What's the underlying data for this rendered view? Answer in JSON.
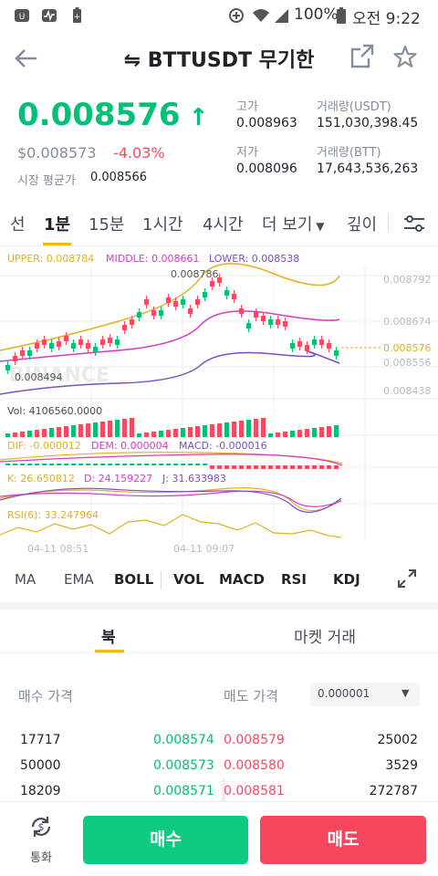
{
  "status": {
    "battery": "100%",
    "time": "오전 9:22"
  },
  "header": {
    "title": "BTTUSDT 무기한"
  },
  "price": {
    "last": "0.008576",
    "usd": "$0.008573",
    "change": "-4.03%",
    "mark_label": "시장 평균가",
    "mark_value": "0.008566",
    "high_label": "고가",
    "high": "0.008963",
    "low_label": "저가",
    "low": "0.008096",
    "vol_usdt_label": "거래량(USDT)",
    "vol_usdt": "151,030,398.45",
    "vol_btt_label": "거래량(BTT)",
    "vol_btt": "17,643,536,263"
  },
  "tabs": [
    "선",
    "1분",
    "15분",
    "1시간",
    "4시간",
    "더 보기",
    "깊이"
  ],
  "chart": {
    "boll": {
      "upper": "UPPER: 0.008784",
      "middle": "MIDDLE: 0.008661",
      "lower": "LOWER: 0.008538"
    },
    "high_mark": "0.008786",
    "low_mark": "0.008494",
    "current": "0.008576",
    "y_axis": [
      "0.008792",
      "0.008674",
      "0.008556",
      "0.008438"
    ],
    "watermark": "BINANCE",
    "vol": "Vol: 4106560.0000",
    "macd": {
      "dif": "DIF: -0.000012",
      "dem": "DEM: 0.000004",
      "macd": "MACD: -0.000016"
    },
    "kdj": {
      "k": "K: 26.650812",
      "d": "D: 24.159227",
      "j": "J: 31.633983"
    },
    "rsi": "RSI(6): 33.247964",
    "times": [
      "04-11 08:51",
      "04-11 09:07"
    ],
    "colors": {
      "up": "#02c076",
      "down": "#f84960",
      "upper": "#e2b11b",
      "middle": "#d63ac9",
      "lower": "#7b4fc2"
    }
  },
  "indicators": [
    "MA",
    "EMA",
    "BOLL",
    "VOL",
    "MACD",
    "RSI",
    "KDJ"
  ],
  "subtabs": {
    "book": "북",
    "trades": "마켓 거래"
  },
  "orderbook": {
    "bid_label": "매수 가격",
    "ask_label": "매도 가격",
    "precision": "0.000001",
    "rows": [
      {
        "bid_qty": "17717",
        "bid": "0.008574",
        "ask": "0.008579",
        "ask_qty": "25002"
      },
      {
        "bid_qty": "50000",
        "bid": "0.008573",
        "ask": "0.008580",
        "ask_qty": "3529"
      },
      {
        "bid_qty": "18209",
        "bid": "0.008571",
        "ask": "0.008581",
        "ask_qty": "272787"
      }
    ]
  },
  "bottom": {
    "convert": "통화",
    "buy": "매수",
    "sell": "매도"
  }
}
